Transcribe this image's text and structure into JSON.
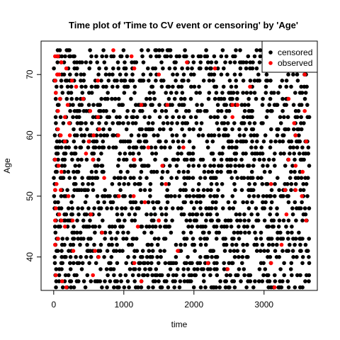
{
  "chart_data": {
    "type": "scatter",
    "title": "Time plot of 'Time to CV event or censoring' by 'Age'",
    "xlabel": "time",
    "ylabel": "Age",
    "xlim": [
      -180,
      3760
    ],
    "ylim": [
      34.5,
      75.5
    ],
    "x_ticks": [
      0,
      1000,
      2000,
      3000
    ],
    "y_ticks": [
      40,
      50,
      60,
      70
    ],
    "grid": false,
    "legend_position": "top-right",
    "age_min": 35,
    "age_max": 74,
    "colors": {
      "censored": "#000000",
      "observed": "#ff0000"
    },
    "series": [
      {
        "name": "censored",
        "color": "#000000",
        "description_rows": "one row per integer age 35-74; points spread across time 0-3650 days",
        "points": []
      },
      {
        "name": "observed",
        "color": "#ff0000",
        "points": [
          [
            20,
            73
          ],
          [
            60,
            73
          ],
          [
            110,
            72
          ],
          [
            180,
            71
          ],
          [
            50,
            70
          ],
          [
            20,
            69
          ],
          [
            80,
            70
          ],
          [
            260,
            69
          ],
          [
            320,
            68
          ],
          [
            630,
            69
          ],
          [
            850,
            74
          ],
          [
            1110,
            73
          ],
          [
            1150,
            71
          ],
          [
            1500,
            70
          ],
          [
            1900,
            72
          ],
          [
            2300,
            71
          ],
          [
            2800,
            68
          ],
          [
            3390,
            72
          ],
          [
            3580,
            70
          ],
          [
            30,
            67
          ],
          [
            90,
            66
          ],
          [
            200,
            65
          ],
          [
            60,
            64
          ],
          [
            160,
            63
          ],
          [
            220,
            62
          ],
          [
            420,
            66
          ],
          [
            520,
            64
          ],
          [
            630,
            63
          ],
          [
            1250,
            65
          ],
          [
            1620,
            65
          ],
          [
            2550,
            65
          ],
          [
            2620,
            65
          ],
          [
            2550,
            63
          ],
          [
            3350,
            66
          ],
          [
            3580,
            64
          ],
          [
            3430,
            62
          ],
          [
            60,
            61
          ],
          [
            100,
            60
          ],
          [
            230,
            60
          ],
          [
            160,
            59
          ],
          [
            500,
            59
          ],
          [
            570,
            60
          ],
          [
            650,
            61
          ],
          [
            920,
            60
          ],
          [
            1350,
            58
          ],
          [
            1850,
            58
          ],
          [
            3450,
            60
          ],
          [
            3600,
            59
          ],
          [
            20,
            56
          ],
          [
            70,
            55
          ],
          [
            110,
            54
          ],
          [
            460,
            57
          ],
          [
            560,
            56
          ],
          [
            1150,
            56
          ],
          [
            1550,
            55
          ],
          [
            3350,
            56
          ],
          [
            3450,
            55
          ],
          [
            3550,
            54
          ],
          [
            40,
            52
          ],
          [
            20,
            51
          ],
          [
            100,
            51
          ],
          [
            210,
            50
          ],
          [
            720,
            53
          ],
          [
            930,
            50
          ],
          [
            1140,
            50
          ],
          [
            1300,
            49
          ],
          [
            1600,
            52
          ],
          [
            3100,
            52
          ],
          [
            3300,
            51
          ],
          [
            3450,
            51
          ],
          [
            3540,
            50
          ],
          [
            30,
            48
          ],
          [
            80,
            47
          ],
          [
            20,
            46
          ],
          [
            110,
            46
          ],
          [
            160,
            45
          ],
          [
            270,
            46
          ],
          [
            530,
            47
          ],
          [
            690,
            44
          ],
          [
            1200,
            45
          ],
          [
            1500,
            46
          ],
          [
            3320,
            47
          ],
          [
            3600,
            46
          ],
          [
            60,
            43
          ],
          [
            20,
            42
          ],
          [
            280,
            41
          ],
          [
            590,
            41
          ],
          [
            640,
            40
          ],
          [
            1150,
            39
          ],
          [
            1770,
            41
          ],
          [
            2200,
            39
          ],
          [
            3100,
            39
          ],
          [
            3250,
            42
          ],
          [
            30,
            37
          ],
          [
            120,
            36
          ],
          [
            180,
            35
          ],
          [
            560,
            37
          ],
          [
            1250,
            36
          ],
          [
            2480,
            38
          ],
          [
            3150,
            35
          ]
        ]
      }
    ]
  }
}
